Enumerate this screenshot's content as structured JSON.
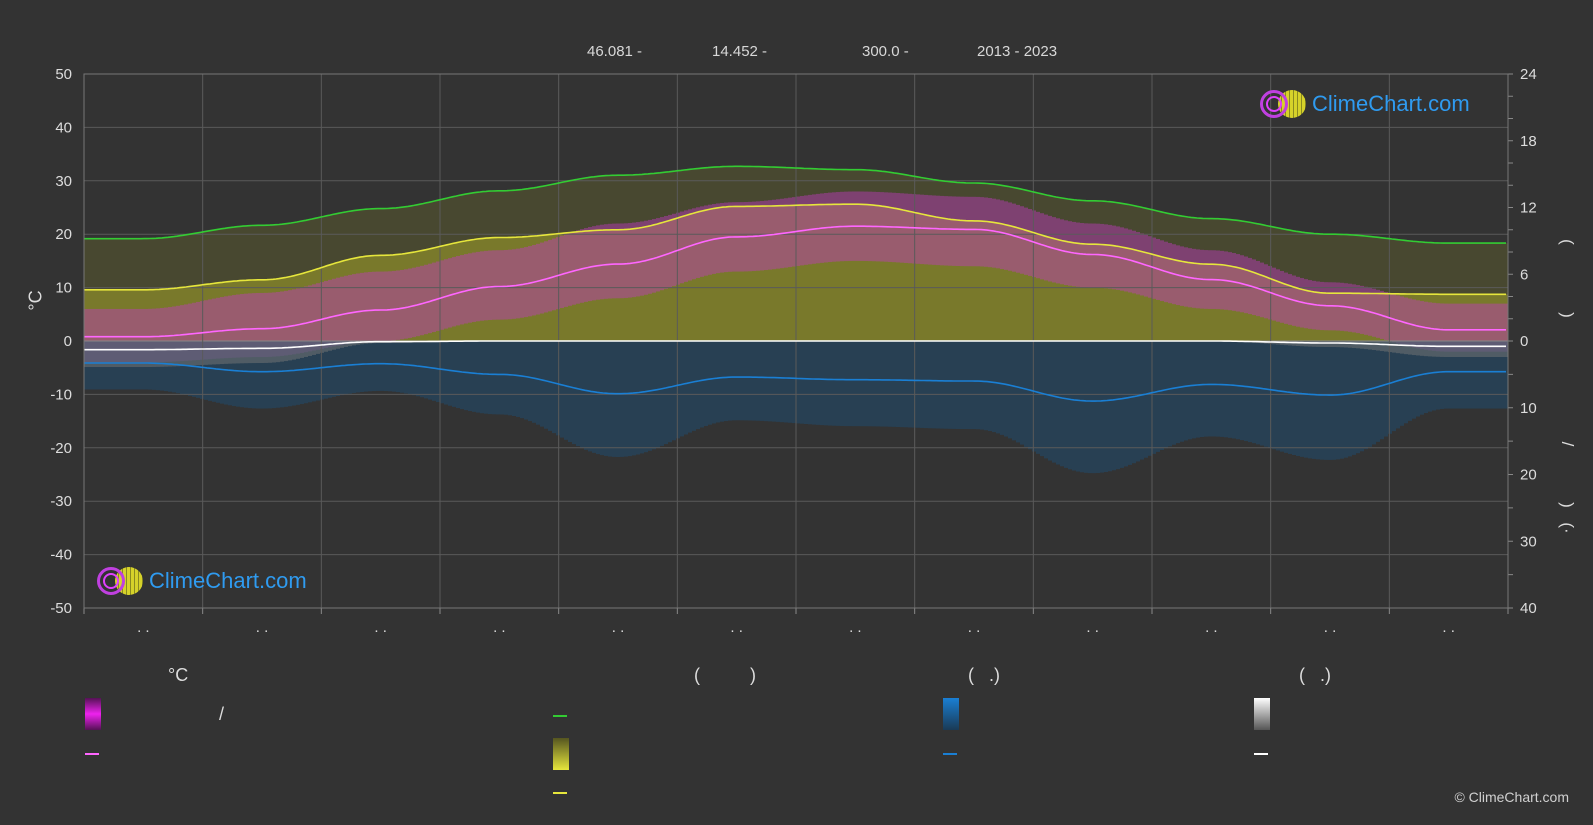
{
  "header": {
    "latitude": "46.081 -",
    "longitude": "14.452 -",
    "elevation": "300.0 -",
    "years": "2013 - 2023"
  },
  "axes": {
    "left_unit": "°C",
    "left_ticks": [
      "50",
      "40",
      "30",
      "20",
      "10",
      "0",
      "-10",
      "-20",
      "-30",
      "-40",
      "-50"
    ],
    "right_ticks_top": [
      "24",
      "18",
      "12",
      "6",
      "0"
    ],
    "right_ticks_bottom": [
      "10",
      "20",
      "30",
      "40"
    ],
    "right_label_marks": [
      "(",
      ")",
      ")",
      "/",
      ")",
      "(·"
    ]
  },
  "month_labels": [
    ". .",
    ". .",
    ". .",
    ". .",
    ". .",
    ". .",
    ". .",
    ". .",
    ". .",
    ". .",
    ". .",
    ". ."
  ],
  "legend": {
    "col1_head": "°C",
    "col1_slash": "/",
    "col2_head": "(          )",
    "col3_head": "(   .)",
    "col4_head": "(   .)"
  },
  "logo": {
    "text": "ClimeChart.com"
  },
  "copyright": "© ClimeChart.com",
  "colors": {
    "background": "#333333",
    "grid": "#5a5a5a",
    "temp_band": "#c23ac2",
    "daylight": "#33cc33",
    "sunshine": "#e6e63c",
    "mean_temp": "#ff66ff",
    "precip": "#1a7fd4",
    "snow": "#ffffff"
  },
  "chart_data": {
    "type": "line",
    "x": [
      "Jan",
      "Feb",
      "Mar",
      "Apr",
      "May",
      "Jun",
      "Jul",
      "Aug",
      "Sep",
      "Oct",
      "Nov",
      "Dec"
    ],
    "ylim_left": [
      -50,
      50
    ],
    "ylim_right_hours": [
      0,
      24
    ],
    "ylim_right_precip_mm": [
      0,
      40
    ],
    "series": [
      {
        "name": "",
        "axis": "hours",
        "role": "daylight",
        "values": [
          9.2,
          10.4,
          11.9,
          13.5,
          14.9,
          15.7,
          15.4,
          14.2,
          12.6,
          11.0,
          9.6,
          8.8
        ]
      },
      {
        "name": "",
        "axis": "hours",
        "role": "sunshine",
        "values": [
          4.6,
          5.5,
          7.7,
          9.3,
          10.0,
          12.1,
          12.3,
          10.8,
          8.7,
          6.9,
          4.3,
          4.2
        ]
      },
      {
        "name": "",
        "axis": "temperature",
        "role": "mean_temp",
        "values": [
          0.8,
          2.3,
          5.8,
          10.2,
          14.4,
          19.5,
          21.5,
          20.9,
          16.2,
          11.5,
          6.6,
          2.1
        ]
      },
      {
        "name": "",
        "axis": "temperature",
        "role": "temp_max",
        "values": [
          6,
          9,
          13,
          17,
          22,
          26,
          28,
          27,
          22,
          17,
          11,
          7
        ]
      },
      {
        "name": "",
        "axis": "temperature",
        "role": "temp_min",
        "values": [
          -4,
          -3,
          0,
          4,
          8,
          13,
          15,
          14,
          10,
          6,
          2,
          -2
        ]
      },
      {
        "name": "",
        "axis": "precip",
        "role": "precipitation",
        "values": [
          3.3,
          4.6,
          3.4,
          5.0,
          7.9,
          5.4,
          5.8,
          6.0,
          9.0,
          6.5,
          8.1,
          4.6
        ]
      },
      {
        "name": "",
        "axis": "precip",
        "role": "snowfall",
        "values": [
          1.3,
          1.1,
          0.1,
          0,
          0,
          0,
          0,
          0,
          0,
          0,
          0.3,
          0.8
        ]
      }
    ]
  }
}
